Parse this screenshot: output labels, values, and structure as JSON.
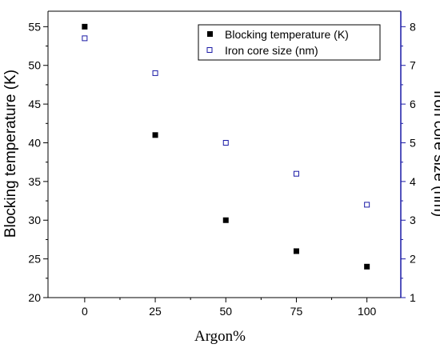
{
  "chart_data": {
    "type": "scatter",
    "xlabel": "Argon%",
    "ylabel": "Blocking temperature (K)",
    "y2label": "Iron core size (nm)",
    "x_ticks": [
      0,
      25,
      50,
      75,
      100
    ],
    "y_ticks": [
      20,
      25,
      30,
      35,
      40,
      45,
      50,
      55
    ],
    "y2_ticks": [
      1,
      2,
      3,
      4,
      5,
      6,
      7,
      8
    ],
    "xlim": [
      -13,
      112
    ],
    "ylim": [
      20,
      57
    ],
    "y2lim": [
      1,
      8.4
    ],
    "grid": false,
    "legend_position": "top-right",
    "series": [
      {
        "name": "Blocking temperature (K)",
        "axis": "left",
        "marker": "filled-square",
        "color": "#000000",
        "x": [
          0,
          25,
          50,
          75,
          100
        ],
        "y": [
          55,
          41,
          30,
          26,
          24
        ]
      },
      {
        "name": "Iron core size (nm)",
        "axis": "right",
        "marker": "open-square",
        "color": "#1a1aa6",
        "x": [
          0,
          25,
          50,
          75,
          100
        ],
        "y": [
          7.7,
          6.8,
          5.0,
          4.2,
          3.4
        ]
      }
    ],
    "right_axis_color": "#1a1aa6"
  }
}
